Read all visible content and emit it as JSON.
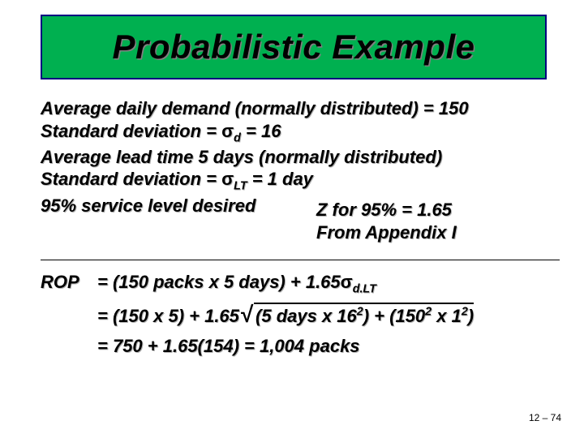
{
  "title": "Probabilistic Example",
  "given": {
    "line1_pre": "Average daily demand (normally distributed) = ",
    "line1_val": "150",
    "line2_pre": "Standard deviation = ",
    "line2_sym": "σ",
    "line2_sub": "d",
    "line2_eq": " = ",
    "line2_val": "16",
    "line3": "Average lead time 5 days (normally distributed)",
    "line4_pre": "Standard deviation = ",
    "line4_sym": "σ",
    "line4_sub": "LT",
    "line4_eq": " = ",
    "line4_val": "1 day",
    "line5": "95% service level desired"
  },
  "note": {
    "z": "Z for 95% = 1.65",
    "appendix": "From Appendix I"
  },
  "rop": {
    "label": "ROP",
    "eq1_a": "= (150 packs x 5 days) + 1.65",
    "eq1_sym": "σ",
    "eq1_sub": "d.LT",
    "eq2_a": "= (150 x 5) + 1.65",
    "eq2_rad_a": "(5 days x 16",
    "eq2_rad_a_sup": "2",
    "eq2_rad_b": ") + (150",
    "eq2_rad_b_sup": "2",
    "eq2_rad_c": " x 1",
    "eq2_rad_c_sup": "2",
    "eq2_rad_d": ")",
    "eq3": "= 750 + 1.65(154) = 1,004 packs"
  },
  "page": "12 – 74",
  "style": {
    "title_bg": "#00b050",
    "title_border": "#000080",
    "title_fontsize": 42,
    "body_fontsize": 22,
    "text_color": "#000000",
    "shadow_color": "#b0b0b0"
  }
}
